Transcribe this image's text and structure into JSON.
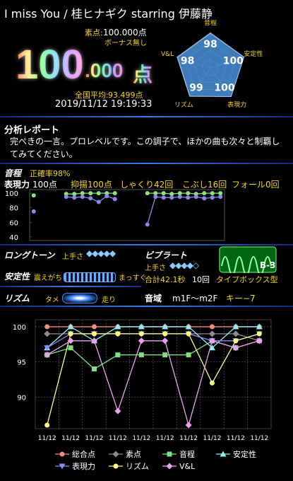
{
  "header": {
    "title": "I miss You / 桂ヒナギク starring 伊藤静"
  },
  "score": {
    "raw_label": "素点:",
    "raw": "100.000点",
    "bonus": "ボーナス無し",
    "main": "100",
    "decimal": ".000",
    "unit": "点",
    "average_label": "全国平均:",
    "average": "93.499点",
    "datetime": "2019/11/12 19:19:33"
  },
  "report": {
    "title": "分析レポート",
    "text": "完ぺきの一言。プロレベルです。この調子で、ほかの曲も次々と制覇してみてください。"
  },
  "pitch": {
    "title": "音程",
    "accuracy": "正確率98%"
  },
  "expression": {
    "title": "表現力",
    "score": "100点",
    "items": [
      "抑揚100点",
      "しゃくり42回",
      "こぶし16回",
      "フォール0回"
    ]
  },
  "longtone": {
    "title": "ロングトーン",
    "skill": "上手さ"
  },
  "vibrato": {
    "title": "ビブラート",
    "skill": "上手さ",
    "total": "合計42.1秒",
    "count": "10回",
    "type": "タイプボックス型",
    "grade": "B-3"
  },
  "stability": {
    "title": "安定性",
    "left": "震えがち",
    "right": "まっすぐ"
  },
  "rhythm": {
    "title": "リズム",
    "left": "タメ",
    "right": "走り"
  },
  "range": {
    "title": "音域",
    "value": "m1F〜m2F",
    "key": "キー−7"
  },
  "chart_data": [
    {
      "type": "radar",
      "categories": [
        "音程",
        "安定性",
        "表現力",
        "リズム",
        "V&L"
      ],
      "values": [
        98,
        100,
        100,
        99,
        98
      ],
      "rlim": [
        0,
        100
      ],
      "color": "#4a90d9"
    },
    {
      "type": "dot-line",
      "categories": [
        null,
        null,
        null,
        null,
        null,
        null,
        null,
        null,
        null,
        null,
        null,
        null,
        null,
        null,
        null,
        null,
        null,
        null,
        null,
        null,
        null,
        null,
        null,
        null
      ],
      "series": [
        {
          "color": "#8ee07e",
          "values": [
            97,
            null,
            null,
            null,
            99,
            99,
            100,
            100,
            100,
            100,
            100,
            null,
            null,
            null,
            100,
            100,
            100,
            99,
            100,
            100,
            99,
            100,
            100,
            100
          ]
        },
        {
          "color": "#8888ee",
          "values": [
            75,
            null,
            null,
            null,
            95,
            94,
            95,
            93,
            88,
            96,
            92,
            null,
            null,
            null,
            57,
            95,
            94,
            94,
            95,
            94,
            95,
            93,
            94,
            95
          ]
        }
      ],
      "ylim": [
        35,
        105
      ],
      "yticks": [
        40,
        60,
        80,
        100
      ]
    },
    {
      "type": "line",
      "categories": [
        "11/12",
        "11/12",
        "11/12",
        "11/12",
        "11/12",
        "11/12",
        "11/12",
        "11/12",
        "11/12",
        "11/12"
      ],
      "series": [
        {
          "name": "総合点",
          "color": "#f08c80",
          "marker": "circle",
          "values": [
            100,
            100,
            100,
            100,
            100,
            100,
            100,
            100,
            100,
            100
          ]
        },
        {
          "name": "素点",
          "color": "#8c8c8c",
          "marker": "diamond",
          "values": [
            99,
            99,
            99,
            99,
            99,
            99,
            99,
            99,
            99,
            98
          ]
        },
        {
          "name": "音程",
          "color": "#7ee07e",
          "marker": "square",
          "values": [
            96,
            97,
            94,
            96,
            96,
            96,
            96,
            98,
            97,
            98
          ]
        },
        {
          "name": "安定性",
          "color": "#90f0f0",
          "marker": "triangle-up",
          "values": [
            97,
            100,
            98,
            100,
            100,
            100,
            100,
            97,
            100,
            100
          ]
        },
        {
          "name": "表現力",
          "color": "#8a8cf0",
          "marker": "triangle-down",
          "values": [
            97,
            99,
            99,
            99,
            99,
            99,
            99,
            98,
            98,
            99
          ]
        },
        {
          "name": "リズム",
          "color": "#ffff80",
          "marker": "circle",
          "values": [
            86,
            99,
            99,
            99,
            99,
            99,
            99,
            92,
            98,
            99
          ]
        },
        {
          "name": "V&L",
          "color": "#f0a0f0",
          "marker": "diamond",
          "values": [
            96,
            98,
            98,
            88,
            98,
            98,
            86,
            98,
            97,
            98
          ]
        }
      ],
      "ylim": [
        85.5,
        101
      ],
      "yticks": [
        90,
        95,
        100
      ],
      "grid": true
    }
  ]
}
